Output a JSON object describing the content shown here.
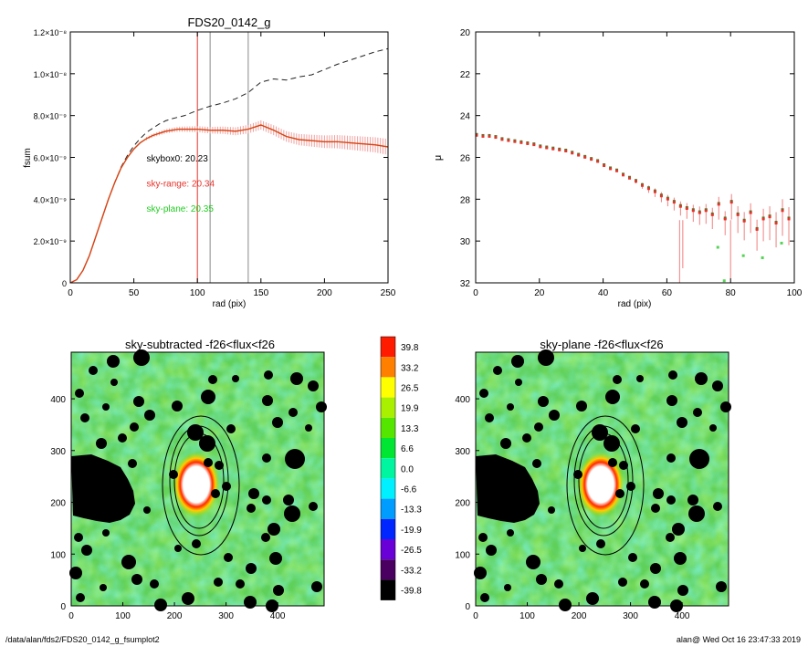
{
  "chart_data": [
    {
      "type": "line",
      "title": "FDS20_0142_g",
      "xlabel": "rad (pix)",
      "ylabel": "fsum",
      "xlim": [
        0,
        250
      ],
      "ylim": [
        0,
        1.2e-08
      ],
      "xticks": [
        "0",
        "50",
        "100",
        "150",
        "200",
        "250"
      ],
      "yticks": [
        {
          "value": 0,
          "label": "0"
        },
        {
          "value": 2e-09,
          "label": "2.0×10⁻⁹"
        },
        {
          "value": 4e-09,
          "label": "4.0×10⁻⁹"
        },
        {
          "value": 6e-09,
          "label": "6.0×10⁻⁹"
        },
        {
          "value": 8e-09,
          "label": "8.0×10⁻⁹"
        },
        {
          "value": 1e-08,
          "label": "1.0×10⁻⁸"
        },
        {
          "value": 1.2e-08,
          "label": "1.2×10⁻⁸"
        }
      ],
      "vlines": [
        {
          "x": 100,
          "color": "#e8322a"
        },
        {
          "x": 110,
          "color": "#888888"
        },
        {
          "x": 140,
          "color": "#888888"
        }
      ],
      "series": [
        {
          "style": "solid-dark",
          "x": [
            0,
            5,
            10,
            15,
            20,
            25,
            30,
            35,
            40,
            45,
            50,
            55,
            60,
            65,
            70,
            75,
            80,
            85,
            90,
            95,
            100,
            110,
            120,
            130,
            140,
            150,
            160,
            170,
            180,
            190,
            200,
            210,
            220,
            230,
            240,
            250
          ],
          "y": [
            0,
            1.5e-10,
            6e-10,
            1.3e-09,
            2.2e-09,
            3.1e-09,
            4e-09,
            4.8e-09,
            5.5e-09,
            6e-09,
            6.4e-09,
            6.7e-09,
            6.9e-09,
            7.05e-09,
            7.15e-09,
            7.25e-09,
            7.3e-09,
            7.35e-09,
            7.35e-09,
            7.35e-09,
            7.35e-09,
            7.3e-09,
            7.3e-09,
            7.25e-09,
            7.35e-09,
            7.55e-09,
            7.3e-09,
            7e-09,
            6.85e-09,
            6.8e-09,
            6.75e-09,
            6.75e-09,
            6.7e-09,
            6.65e-09,
            6.6e-09,
            6.5e-09
          ]
        },
        {
          "style": "dashed",
          "x": [
            0,
            5,
            10,
            15,
            20,
            25,
            30,
            35,
            40,
            45,
            50,
            55,
            60,
            65,
            70,
            75,
            80,
            90,
            100,
            110,
            120,
            130,
            140,
            150,
            160,
            170,
            180,
            190,
            200,
            210,
            220,
            230,
            240,
            250
          ],
          "y": [
            0,
            1.5e-10,
            6e-10,
            1.3e-09,
            2.2e-09,
            3.1e-09,
            4e-09,
            4.8e-09,
            5.55e-09,
            6.1e-09,
            6.55e-09,
            6.9e-09,
            7.2e-09,
            7.4e-09,
            7.6e-09,
            7.75e-09,
            7.85e-09,
            8e-09,
            8.25e-09,
            8.45e-09,
            8.6e-09,
            8.8e-09,
            9.1e-09,
            9.6e-09,
            9.75e-09,
            9.7e-09,
            9.85e-09,
            9.95e-09,
            1.02e-08,
            1.045e-08,
            1.065e-08,
            1.085e-08,
            1.105e-08,
            1.12e-08
          ]
        },
        {
          "style": "red-with-errors",
          "x": [
            0,
            5,
            10,
            15,
            20,
            25,
            30,
            35,
            40,
            45,
            50,
            55,
            60,
            65,
            70,
            75,
            80,
            85,
            90,
            95,
            100,
            110,
            120,
            130,
            140,
            150,
            160,
            170,
            180,
            190,
            200,
            210,
            220,
            230,
            240,
            250
          ],
          "y": [
            0,
            1.5e-10,
            6e-10,
            1.3e-09,
            2.2e-09,
            3.1e-09,
            4e-09,
            4.8e-09,
            5.5e-09,
            6e-09,
            6.4e-09,
            6.7e-09,
            6.9e-09,
            7.05e-09,
            7.15e-09,
            7.25e-09,
            7.3e-09,
            7.35e-09,
            7.35e-09,
            7.35e-09,
            7.35e-09,
            7.3e-09,
            7.3e-09,
            7.25e-09,
            7.35e-09,
            7.55e-09,
            7.3e-09,
            7e-09,
            6.85e-09,
            6.8e-09,
            6.75e-09,
            6.75e-09,
            6.7e-09,
            6.65e-09,
            6.6e-09,
            6.5e-09
          ]
        }
      ],
      "annotations": [
        {
          "text": "skybox0: 20.23",
          "color": "#000000",
          "at": [
            60,
            5.8e-09
          ]
        },
        {
          "text": "sky-range: 20.34",
          "color": "#e8322a",
          "at": [
            60,
            4.6e-09
          ]
        },
        {
          "text": "sky-plane: 20.35",
          "color": "#22cc22",
          "at": [
            60,
            3.4e-09
          ]
        }
      ]
    },
    {
      "type": "scatter",
      "title": "",
      "xlabel": "rad (pix)",
      "ylabel": "μ",
      "xlim": [
        0,
        100
      ],
      "ylim": [
        32,
        20
      ],
      "xticks": [
        "0",
        "20",
        "40",
        "60",
        "80",
        "100"
      ],
      "yticks": [
        "20",
        "22",
        "24",
        "26",
        "28",
        "30",
        "32"
      ],
      "series": [
        {
          "color": "#e8322a",
          "x": [
            0,
            2,
            4,
            6,
            8,
            10,
            12,
            14,
            16,
            18,
            20,
            22,
            24,
            26,
            28,
            30,
            32,
            34,
            36,
            38,
            40,
            42,
            44,
            46,
            48,
            50,
            52,
            54,
            56,
            58,
            60,
            62,
            64,
            66,
            68,
            70,
            72,
            74,
            76,
            78,
            80,
            82,
            84,
            86,
            88,
            90,
            92,
            94,
            96,
            98
          ],
          "y": [
            24.9,
            24.95,
            24.95,
            25.0,
            25.1,
            25.15,
            25.2,
            25.25,
            25.3,
            25.35,
            25.45,
            25.5,
            25.55,
            25.6,
            25.65,
            25.75,
            25.85,
            25.95,
            26.05,
            26.15,
            26.35,
            26.5,
            26.6,
            26.8,
            26.95,
            27.1,
            27.3,
            27.45,
            27.6,
            27.8,
            27.95,
            28.1,
            28.3,
            28.4,
            28.5,
            28.6,
            28.5,
            28.7,
            28.2,
            28.9,
            28.1,
            28.7,
            29.0,
            28.6,
            29.4,
            28.9,
            28.8,
            29.1,
            28.5,
            28.9
          ]
        }
      ]
    },
    {
      "type": "heatmap",
      "title": "sky-subtracted -f26<flux<f26",
      "xticks": [
        "0",
        "100",
        "200",
        "300",
        "400"
      ],
      "yticks": [
        "0",
        "100",
        "200",
        "300",
        "400"
      ],
      "xlim": [
        0,
        490
      ],
      "ylim": [
        0,
        490
      ]
    },
    {
      "type": "heatmap",
      "title": "sky-plane -f26<flux<f26",
      "xticks": [
        "0",
        "100",
        "200",
        "300",
        "400"
      ],
      "yticks": [
        "0",
        "100",
        "200",
        "300",
        "400"
      ],
      "xlim": [
        0,
        490
      ],
      "ylim": [
        0,
        490
      ]
    }
  ],
  "colorbar": {
    "labels": [
      "39.8",
      "33.2",
      "26.5",
      "19.9",
      "13.3",
      "6.6",
      "0.0",
      "-6.6",
      "-13.3",
      "-19.9",
      "-26.5",
      "-33.2",
      "-39.8"
    ],
    "colors": [
      "#ff1a00",
      "#ff7f00",
      "#ffff00",
      "#a8f000",
      "#55e600",
      "#00e633",
      "#00f5a0",
      "#00f0ff",
      "#009cff",
      "#0026ff",
      "#6a00d8",
      "#4a0060",
      "#000000"
    ]
  },
  "footer": {
    "left": "/data/alan/fds2/FDS20_0142_g_fsumplot2",
    "right": "alan@  Wed Oct 16 23:47:33 2019"
  }
}
